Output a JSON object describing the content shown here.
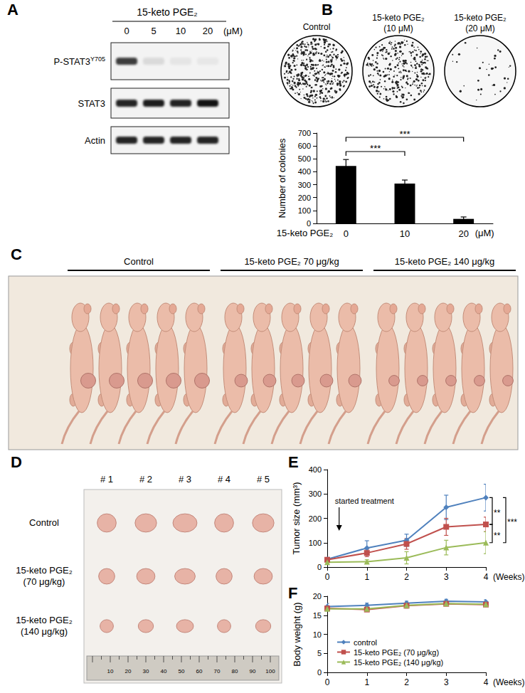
{
  "chart_data": [
    {
      "panel": "B",
      "type": "bar",
      "categories": [
        "0",
        "10",
        "20"
      ],
      "values": [
        445,
        308,
        35
      ],
      "errors": [
        50,
        28,
        15
      ],
      "color": "#000000",
      "ylabel": "Number of colonies",
      "xlabel": "15-keto PGE₂",
      "x_unit": "(μM)",
      "ylim": [
        0,
        700
      ],
      "yticks": [
        0,
        100,
        200,
        300,
        400,
        500,
        600,
        700
      ],
      "grid": false,
      "significance": [
        {
          "from": "0",
          "to": "10",
          "label": "***"
        },
        {
          "from": "0",
          "to": "20",
          "label": "***"
        }
      ]
    },
    {
      "panel": "E",
      "type": "line",
      "x": [
        0,
        1,
        2,
        3,
        4
      ],
      "xlim": [
        0,
        4
      ],
      "xticks": [
        0,
        1,
        2,
        3,
        4
      ],
      "xlabel": "(Weeks)",
      "ylabel": "Tumor size (mm³)",
      "ylim": [
        0,
        400
      ],
      "yticks": [
        0,
        100,
        200,
        300,
        400
      ],
      "grid": false,
      "series": [
        {
          "color": "#4F81BD",
          "marker": "diamond",
          "values": [
            32,
            78,
            110,
            245,
            285
          ],
          "errors": [
            8,
            30,
            25,
            50,
            55
          ]
        },
        {
          "color": "#C0504D",
          "marker": "square",
          "values": [
            30,
            58,
            95,
            165,
            175
          ],
          "errors": [
            6,
            15,
            22,
            35,
            30
          ]
        },
        {
          "color": "#9BBB59",
          "marker": "triangle",
          "values": [
            20,
            22,
            38,
            80,
            100
          ],
          "errors": [
            5,
            8,
            25,
            30,
            45
          ]
        }
      ],
      "annotations": [
        {
          "text": "started treatment",
          "x": 0.3
        }
      ],
      "significance": [
        {
          "from": 0,
          "to": 1,
          "label": "**"
        },
        {
          "from": 1,
          "to": 2,
          "label": "**"
        },
        {
          "from": 0,
          "to": 2,
          "label": "***"
        }
      ]
    },
    {
      "panel": "F",
      "type": "line",
      "x": [
        0,
        1,
        2,
        3,
        4
      ],
      "xlim": [
        0,
        4
      ],
      "xticks": [
        0,
        1,
        2,
        3,
        4
      ],
      "xlabel": "(Weeks)",
      "ylabel": "Body weight (g)",
      "ylim": [
        0,
        20
      ],
      "yticks": [
        0,
        5,
        10,
        15,
        20
      ],
      "grid": false,
      "legend": "lower left",
      "series": [
        {
          "name": "control",
          "color": "#4F81BD",
          "marker": "diamond",
          "values": [
            17.3,
            17.6,
            18.2,
            18.7,
            18.5
          ],
          "errors": [
            0.8,
            0.6,
            0.5,
            0.5,
            0.6
          ]
        },
        {
          "name": "15-keto PGE₂ (70 μg/kg)",
          "color": "#C0504D",
          "marker": "square",
          "values": [
            16.8,
            16.5,
            17.5,
            18.0,
            17.8
          ],
          "errors": [
            0.6,
            0.5,
            0.6,
            0.5,
            0.5
          ]
        },
        {
          "name": "15-keto PGE₂ (140 μg/kg)",
          "color": "#9BBB59",
          "marker": "triangle",
          "values": [
            16.7,
            16.7,
            17.6,
            18.1,
            17.9
          ],
          "errors": [
            0.5,
            0.6,
            0.5,
            0.6,
            0.5
          ]
        }
      ]
    }
  ],
  "figure": {
    "panel_a": {
      "panel": "A",
      "treatment": "15-keto PGE₂",
      "doses": [
        "0",
        "5",
        "10",
        "20"
      ],
      "unit": "(μM)",
      "blots": [
        {
          "label": "P-STAT3",
          "superscript": "Y705",
          "intensity": [
            0.75,
            0.1,
            0.06,
            0.05
          ]
        },
        {
          "label": "STAT3",
          "intensity": [
            0.85,
            0.88,
            0.86,
            0.92
          ]
        },
        {
          "label": "Actin",
          "intensity": [
            0.85,
            0.85,
            0.85,
            0.85
          ]
        }
      ]
    },
    "panel_b_plates": {
      "labels": [
        [
          "Control"
        ],
        [
          "15-keto PGE₂",
          "(10 μM)"
        ],
        [
          "15-keto PGE₂",
          "(20 μM)"
        ]
      ]
    },
    "panel_c": {
      "panel": "C",
      "groups": [
        "Control",
        "15-keto PGE₂ 70 μg/kg",
        "15-keto PGE₂ 140 μg/kg"
      ],
      "mice_per_group": 5
    },
    "panel_d": {
      "panel": "D",
      "columns": [
        "# 1",
        "# 2",
        "# 3",
        "# 4",
        "# 5"
      ],
      "rows": [
        [
          "Control"
        ],
        [
          "15-keto PGE₂",
          "(70 μg/kg)"
        ],
        [
          "15-keto PGE₂",
          "(140 μg/kg)"
        ]
      ],
      "ruler": [
        10,
        20,
        30,
        40,
        50,
        60,
        70,
        80,
        90,
        100
      ]
    }
  }
}
